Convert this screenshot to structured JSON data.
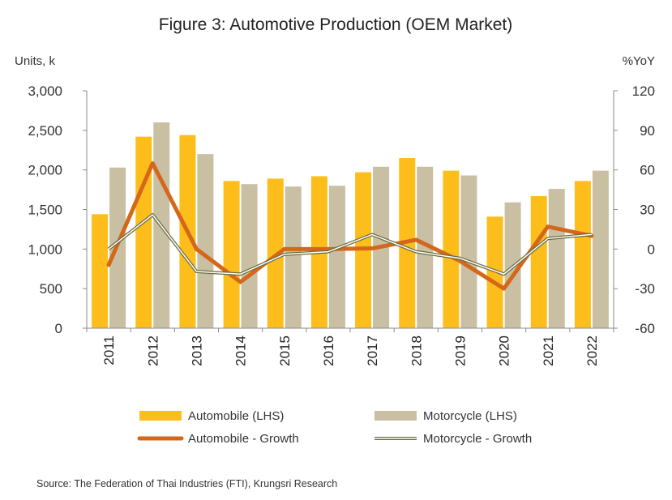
{
  "chart_data": {
    "type": "bar",
    "title": "Figure 3: Automotive Production (OEM Market)",
    "ylabel_left": "Units, k",
    "ylabel_right": "%YoY",
    "categories": [
      "2011",
      "2012",
      "2013",
      "2014",
      "2015",
      "2016",
      "2017",
      "2018",
      "2019",
      "2020",
      "2021",
      "2022"
    ],
    "ylim_left": [
      0,
      3000
    ],
    "yticks_left": [
      "0",
      "500",
      "1,000",
      "1,500",
      "2,000",
      "2,500",
      "3,000"
    ],
    "ylim_right": [
      -60,
      120
    ],
    "yticks_right": [
      "-60",
      "-30",
      "0",
      "30",
      "60",
      "90",
      "120"
    ],
    "grid": false,
    "legend_position": "bottom",
    "series": [
      {
        "name": "Automobile (LHS)",
        "type": "bar",
        "axis": "left",
        "color": "#FDBE1B",
        "values": [
          1440,
          2420,
          2440,
          1860,
          1890,
          1920,
          1970,
          2150,
          1990,
          1410,
          1670,
          1860
        ]
      },
      {
        "name": "Motorcycle (LHS)",
        "type": "bar",
        "axis": "left",
        "color": "#C9BFA3",
        "values": [
          2030,
          2600,
          2200,
          1820,
          1790,
          1800,
          2040,
          2040,
          1930,
          1590,
          1760,
          1990
        ]
      },
      {
        "name": "Automobile - Growth",
        "type": "line",
        "axis": "right",
        "color": "#D5671B",
        "values": [
          -12,
          65,
          0,
          -25,
          0,
          0,
          0.5,
          7,
          -9,
          -30,
          17,
          10
        ]
      },
      {
        "name": "Motorcycle - Growth",
        "type": "line",
        "axis": "right",
        "color": "#6B6B3F",
        "values": [
          0,
          26,
          -17,
          -19,
          -4,
          -2,
          11,
          -2,
          -7,
          -19,
          8,
          11
        ]
      }
    ],
    "source": "Source: The Federation of Thai  Industries (FTI), Krungsri Research"
  }
}
